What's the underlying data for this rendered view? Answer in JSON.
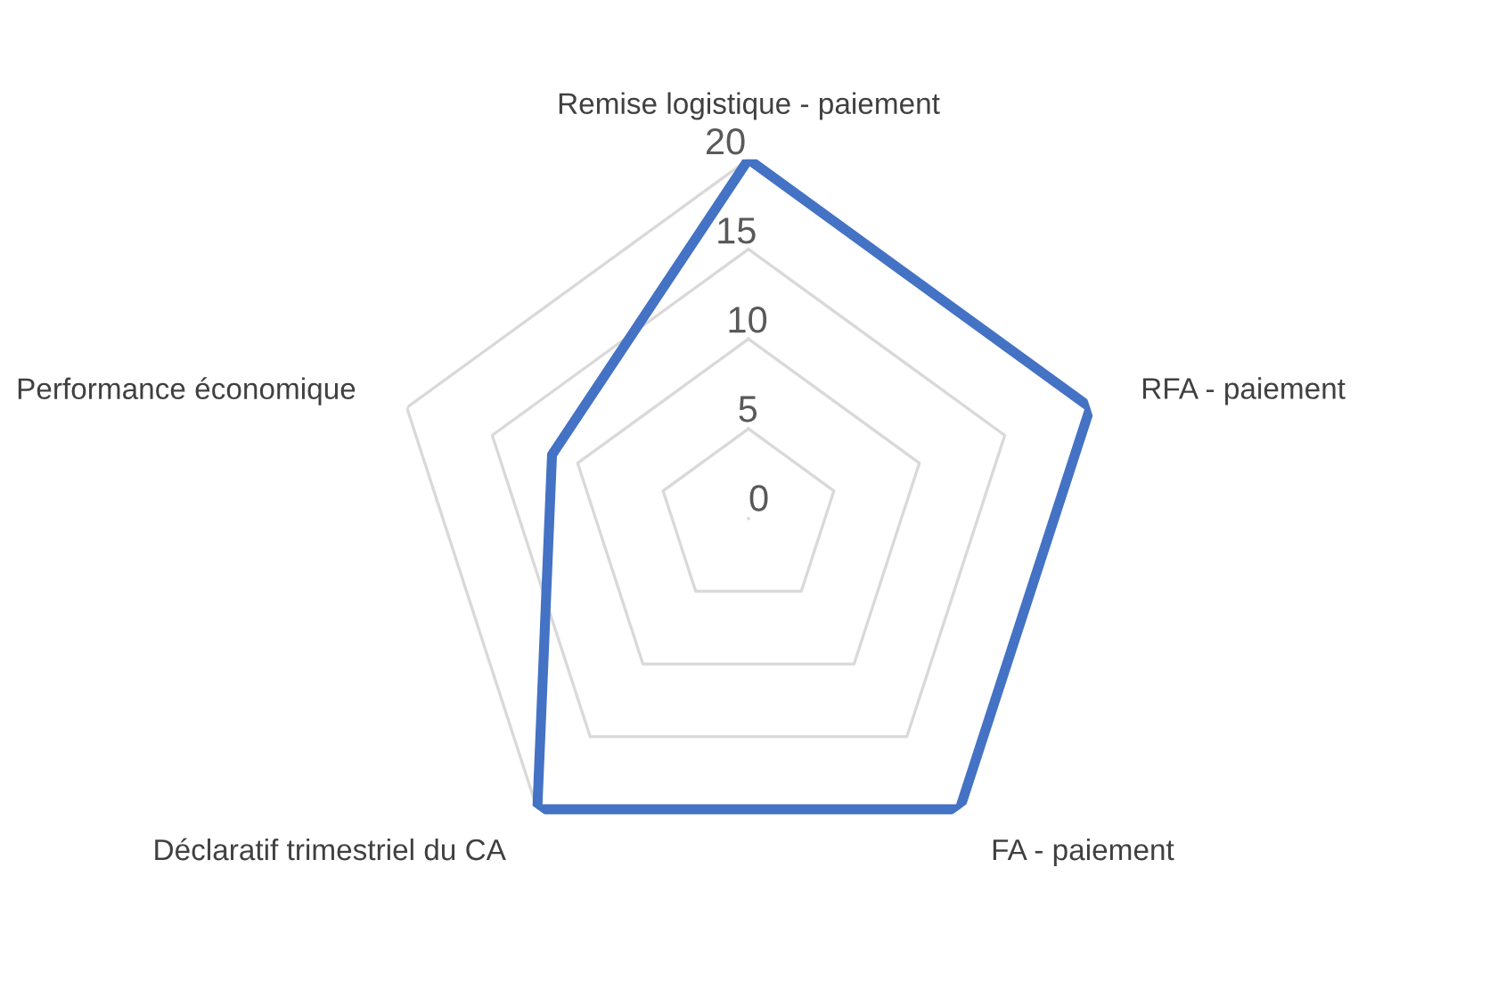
{
  "chart_data": {
    "type": "radar",
    "categories": [
      "Remise logistique - paiement",
      "RFA - paiement",
      "FA - paiement",
      "Déclaratif trimestriel du CA",
      "Performance économique"
    ],
    "series": [
      {
        "color": "#4472c4",
        "values": [
          20,
          20,
          20,
          20,
          11.5
        ]
      }
    ],
    "ylim": [
      0,
      20
    ],
    "yticks": [
      0,
      5,
      10,
      15,
      20
    ],
    "grid": true,
    "marker": "none",
    "line_style": "solid"
  }
}
